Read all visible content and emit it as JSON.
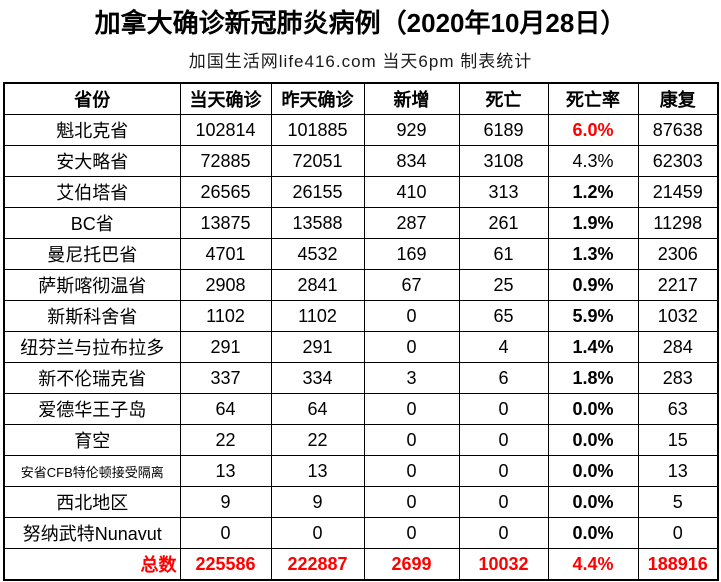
{
  "title": "加拿大确诊新冠肺炎病例（2020年10月28日）",
  "subtitle": "加国生活网life416.com 当天6pm 制表统计",
  "colors": {
    "highlight_red": "#ff0000",
    "text_black": "#000000",
    "border": "#000000",
    "background": "#ffffff"
  },
  "chart_data": {
    "type": "table",
    "title": "加拿大确诊新冠肺炎病例（2020年10月28日）",
    "subtitle": "加国生活网life416.com 当天6pm 制表统计",
    "columns": [
      "省份",
      "当天确诊",
      "昨天确诊",
      "新增",
      "死亡",
      "死亡率",
      "康复"
    ],
    "rows": [
      {
        "province": "魁北克省",
        "today": "102814",
        "yesterday": "101885",
        "new": "929",
        "deaths": "6189",
        "rate": "6.0%",
        "recovered": "87638",
        "rate_style": "red",
        "small": false
      },
      {
        "province": "安大略省",
        "today": "72885",
        "yesterday": "72051",
        "new": "834",
        "deaths": "3108",
        "rate": "4.3%",
        "recovered": "62303",
        "rate_style": "plain",
        "small": false
      },
      {
        "province": "艾伯塔省",
        "today": "26565",
        "yesterday": "26155",
        "new": "410",
        "deaths": "313",
        "rate": "1.2%",
        "recovered": "21459",
        "rate_style": "bold",
        "small": false
      },
      {
        "province": "BC省",
        "today": "13875",
        "yesterday": "13588",
        "new": "287",
        "deaths": "261",
        "rate": "1.9%",
        "recovered": "11298",
        "rate_style": "bold",
        "small": false
      },
      {
        "province": "曼尼托巴省",
        "today": "4701",
        "yesterday": "4532",
        "new": "169",
        "deaths": "61",
        "rate": "1.3%",
        "recovered": "2306",
        "rate_style": "bold",
        "small": false
      },
      {
        "province": "萨斯喀彻温省",
        "today": "2908",
        "yesterday": "2841",
        "new": "67",
        "deaths": "25",
        "rate": "0.9%",
        "recovered": "2217",
        "rate_style": "bold",
        "small": false
      },
      {
        "province": "新斯科舍省",
        "today": "1102",
        "yesterday": "1102",
        "new": "0",
        "deaths": "65",
        "rate": "5.9%",
        "recovered": "1032",
        "rate_style": "bold",
        "small": false
      },
      {
        "province": "纽芬兰与拉布拉多",
        "today": "291",
        "yesterday": "291",
        "new": "0",
        "deaths": "4",
        "rate": "1.4%",
        "recovered": "284",
        "rate_style": "bold",
        "small": false
      },
      {
        "province": "新不伦瑞克省",
        "today": "337",
        "yesterday": "334",
        "new": "3",
        "deaths": "6",
        "rate": "1.8%",
        "recovered": "283",
        "rate_style": "bold",
        "small": false
      },
      {
        "province": "爱德华王子岛",
        "today": "64",
        "yesterday": "64",
        "new": "0",
        "deaths": "0",
        "rate": "0.0%",
        "recovered": "63",
        "rate_style": "bold",
        "small": false
      },
      {
        "province": "育空",
        "today": "22",
        "yesterday": "22",
        "new": "0",
        "deaths": "0",
        "rate": "0.0%",
        "recovered": "15",
        "rate_style": "bold",
        "small": false
      },
      {
        "province": "安省CFB特伦顿接受隔离",
        "today": "13",
        "yesterday": "13",
        "new": "0",
        "deaths": "0",
        "rate": "0.0%",
        "recovered": "13",
        "rate_style": "bold",
        "small": true
      },
      {
        "province": "西北地区",
        "today": "9",
        "yesterday": "9",
        "new": "0",
        "deaths": "0",
        "rate": "0.0%",
        "recovered": "5",
        "rate_style": "bold",
        "small": false
      },
      {
        "province": "努纳武特Nunavut",
        "today": "0",
        "yesterday": "0",
        "new": "0",
        "deaths": "0",
        "rate": "0.0%",
        "recovered": "0",
        "rate_style": "bold",
        "small": false
      }
    ],
    "total": {
      "province": "总数",
      "today": "225586",
      "yesterday": "222887",
      "new": "2699",
      "deaths": "10032",
      "rate": "4.4%",
      "recovered": "188916"
    }
  }
}
